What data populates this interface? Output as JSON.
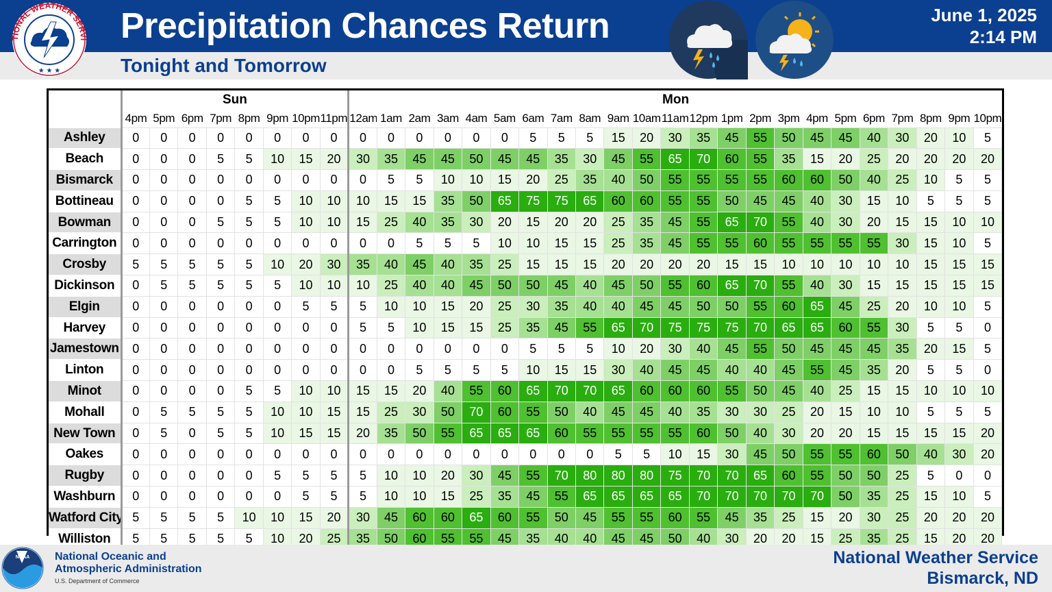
{
  "header": {
    "title": "Precipitation Chances Return",
    "subtitle": "Tonight and Tomorrow",
    "date": "June 1, 2025",
    "time": "2:14 PM",
    "logo_text": "NATIONAL WEATHER SERVICE",
    "icons": [
      "storm-cloud-icon",
      "sun-storm-cloud-icon"
    ]
  },
  "colors": {
    "brand_blue": "#0b3f8f",
    "scale": [
      "#ffffff",
      "#e9f7e4",
      "#caeebc",
      "#a6e093",
      "#7ed066",
      "#4fc030",
      "#29ad0f"
    ]
  },
  "table": {
    "days": [
      {
        "label": "Sun",
        "span": 8
      },
      {
        "label": "Mon",
        "span": 23
      }
    ],
    "hours": [
      "4pm",
      "5pm",
      "6pm",
      "7pm",
      "8pm",
      "9pm",
      "10pm",
      "11pm",
      "12am",
      "1am",
      "2am",
      "3am",
      "4am",
      "5am",
      "6am",
      "7am",
      "8am",
      "9am",
      "10am",
      "11am",
      "12pm",
      "1pm",
      "2pm",
      "3pm",
      "4pm",
      "5pm",
      "6pm",
      "7pm",
      "8pm",
      "9pm",
      "10pm"
    ],
    "rows": [
      {
        "city": "Ashley",
        "values": [
          0,
          0,
          0,
          0,
          0,
          0,
          0,
          0,
          0,
          0,
          0,
          0,
          0,
          0,
          5,
          5,
          5,
          15,
          20,
          30,
          35,
          45,
          55,
          50,
          45,
          45,
          40,
          30,
          20,
          10,
          5
        ]
      },
      {
        "city": "Beach",
        "values": [
          0,
          0,
          0,
          5,
          5,
          10,
          15,
          20,
          30,
          35,
          45,
          45,
          50,
          45,
          45,
          35,
          30,
          45,
          55,
          65,
          70,
          60,
          55,
          35,
          15,
          20,
          25,
          20,
          20,
          20,
          20
        ]
      },
      {
        "city": "Bismarck",
        "values": [
          0,
          0,
          0,
          0,
          0,
          0,
          0,
          0,
          0,
          5,
          5,
          10,
          10,
          15,
          20,
          25,
          35,
          40,
          50,
          55,
          55,
          55,
          55,
          60,
          60,
          50,
          40,
          25,
          10,
          5,
          5
        ]
      },
      {
        "city": "Bottineau",
        "values": [
          0,
          0,
          0,
          0,
          5,
          5,
          10,
          10,
          10,
          15,
          15,
          35,
          50,
          65,
          75,
          75,
          65,
          60,
          60,
          55,
          55,
          50,
          45,
          45,
          40,
          30,
          15,
          10,
          5,
          5,
          5
        ]
      },
      {
        "city": "Bowman",
        "values": [
          0,
          0,
          0,
          5,
          5,
          5,
          10,
          10,
          15,
          25,
          40,
          35,
          30,
          20,
          15,
          20,
          20,
          25,
          35,
          45,
          55,
          65,
          70,
          55,
          40,
          30,
          20,
          15,
          15,
          10,
          10
        ]
      },
      {
        "city": "Carrington",
        "values": [
          0,
          0,
          0,
          0,
          0,
          0,
          0,
          0,
          0,
          0,
          5,
          5,
          5,
          10,
          10,
          15,
          15,
          25,
          35,
          45,
          55,
          55,
          60,
          55,
          55,
          55,
          55,
          30,
          15,
          10,
          5
        ]
      },
      {
        "city": "Crosby",
        "values": [
          5,
          5,
          5,
          5,
          5,
          10,
          20,
          30,
          35,
          40,
          45,
          40,
          35,
          25,
          15,
          15,
          15,
          20,
          20,
          20,
          20,
          15,
          15,
          10,
          10,
          10,
          10,
          10,
          15,
          15,
          15
        ]
      },
      {
        "city": "Dickinson",
        "values": [
          0,
          5,
          5,
          5,
          5,
          5,
          10,
          10,
          10,
          25,
          40,
          40,
          45,
          50,
          50,
          45,
          40,
          45,
          50,
          55,
          60,
          65,
          70,
          55,
          40,
          30,
          15,
          15,
          15,
          15,
          15
        ]
      },
      {
        "city": "Elgin",
        "values": [
          0,
          0,
          0,
          0,
          0,
          0,
          5,
          5,
          5,
          10,
          10,
          15,
          20,
          25,
          30,
          35,
          40,
          40,
          45,
          45,
          50,
          50,
          55,
          60,
          65,
          45,
          25,
          20,
          10,
          10,
          5
        ]
      },
      {
        "city": "Harvey",
        "values": [
          0,
          0,
          0,
          0,
          0,
          0,
          0,
          0,
          5,
          5,
          10,
          15,
          15,
          25,
          35,
          45,
          55,
          65,
          70,
          75,
          75,
          75,
          70,
          65,
          65,
          60,
          55,
          30,
          5,
          5,
          0
        ]
      },
      {
        "city": "Jamestown",
        "values": [
          0,
          0,
          0,
          0,
          0,
          0,
          0,
          0,
          0,
          0,
          0,
          0,
          0,
          0,
          5,
          5,
          5,
          10,
          20,
          30,
          40,
          45,
          55,
          50,
          45,
          45,
          45,
          35,
          20,
          15,
          5
        ]
      },
      {
        "city": "Linton",
        "values": [
          0,
          0,
          0,
          0,
          0,
          0,
          0,
          0,
          0,
          0,
          5,
          5,
          5,
          5,
          10,
          15,
          15,
          30,
          40,
          45,
          45,
          40,
          40,
          45,
          55,
          45,
          35,
          20,
          5,
          5,
          0
        ]
      },
      {
        "city": "Minot",
        "values": [
          0,
          0,
          0,
          0,
          5,
          5,
          10,
          10,
          15,
          15,
          20,
          40,
          55,
          60,
          65,
          70,
          70,
          65,
          60,
          60,
          60,
          55,
          50,
          45,
          40,
          25,
          15,
          15,
          10,
          10,
          10
        ]
      },
      {
        "city": "Mohall",
        "values": [
          0,
          5,
          5,
          5,
          5,
          10,
          10,
          15,
          15,
          25,
          30,
          50,
          70,
          60,
          55,
          50,
          40,
          45,
          45,
          40,
          35,
          30,
          30,
          25,
          20,
          15,
          10,
          10,
          5,
          5,
          5
        ]
      },
      {
        "city": "New Town",
        "values": [
          0,
          5,
          0,
          5,
          5,
          10,
          15,
          15,
          20,
          35,
          50,
          55,
          65,
          65,
          65,
          60,
          55,
          55,
          55,
          55,
          60,
          50,
          40,
          30,
          20,
          20,
          15,
          15,
          15,
          15,
          20
        ]
      },
      {
        "city": "Oakes",
        "values": [
          0,
          0,
          0,
          0,
          0,
          0,
          0,
          0,
          0,
          0,
          0,
          0,
          0,
          0,
          0,
          0,
          0,
          5,
          5,
          10,
          15,
          30,
          45,
          50,
          55,
          55,
          60,
          50,
          40,
          30,
          20
        ]
      },
      {
        "city": "Rugby",
        "values": [
          0,
          0,
          0,
          0,
          0,
          5,
          5,
          5,
          5,
          10,
          10,
          20,
          30,
          45,
          55,
          70,
          80,
          80,
          80,
          75,
          70,
          70,
          65,
          60,
          55,
          50,
          50,
          25,
          5,
          0,
          0
        ]
      },
      {
        "city": "Washburn",
        "values": [
          0,
          0,
          0,
          0,
          0,
          0,
          5,
          5,
          5,
          10,
          10,
          15,
          25,
          35,
          45,
          55,
          65,
          65,
          65,
          65,
          70,
          70,
          70,
          70,
          70,
          50,
          35,
          25,
          15,
          10,
          5
        ]
      },
      {
        "city": "Watford City",
        "values": [
          5,
          5,
          5,
          5,
          10,
          10,
          15,
          20,
          30,
          45,
          60,
          60,
          65,
          60,
          55,
          50,
          45,
          55,
          55,
          60,
          55,
          45,
          35,
          25,
          15,
          20,
          30,
          25,
          20,
          20,
          20
        ]
      },
      {
        "city": "Williston",
        "values": [
          5,
          5,
          5,
          5,
          5,
          10,
          20,
          25,
          35,
          50,
          60,
          55,
          55,
          45,
          35,
          40,
          40,
          45,
          45,
          50,
          40,
          30,
          20,
          20,
          15,
          25,
          35,
          25,
          15,
          20,
          20
        ]
      }
    ]
  },
  "footer": {
    "noaa_line1": "National Oceanic and",
    "noaa_line2": "Atmospheric Administration",
    "noaa_line3": "U.S. Department of Commerce",
    "noaa_logo_text": "NOAA",
    "office_line1": "National Weather Service",
    "office_line2": "Bismarck, ND"
  }
}
